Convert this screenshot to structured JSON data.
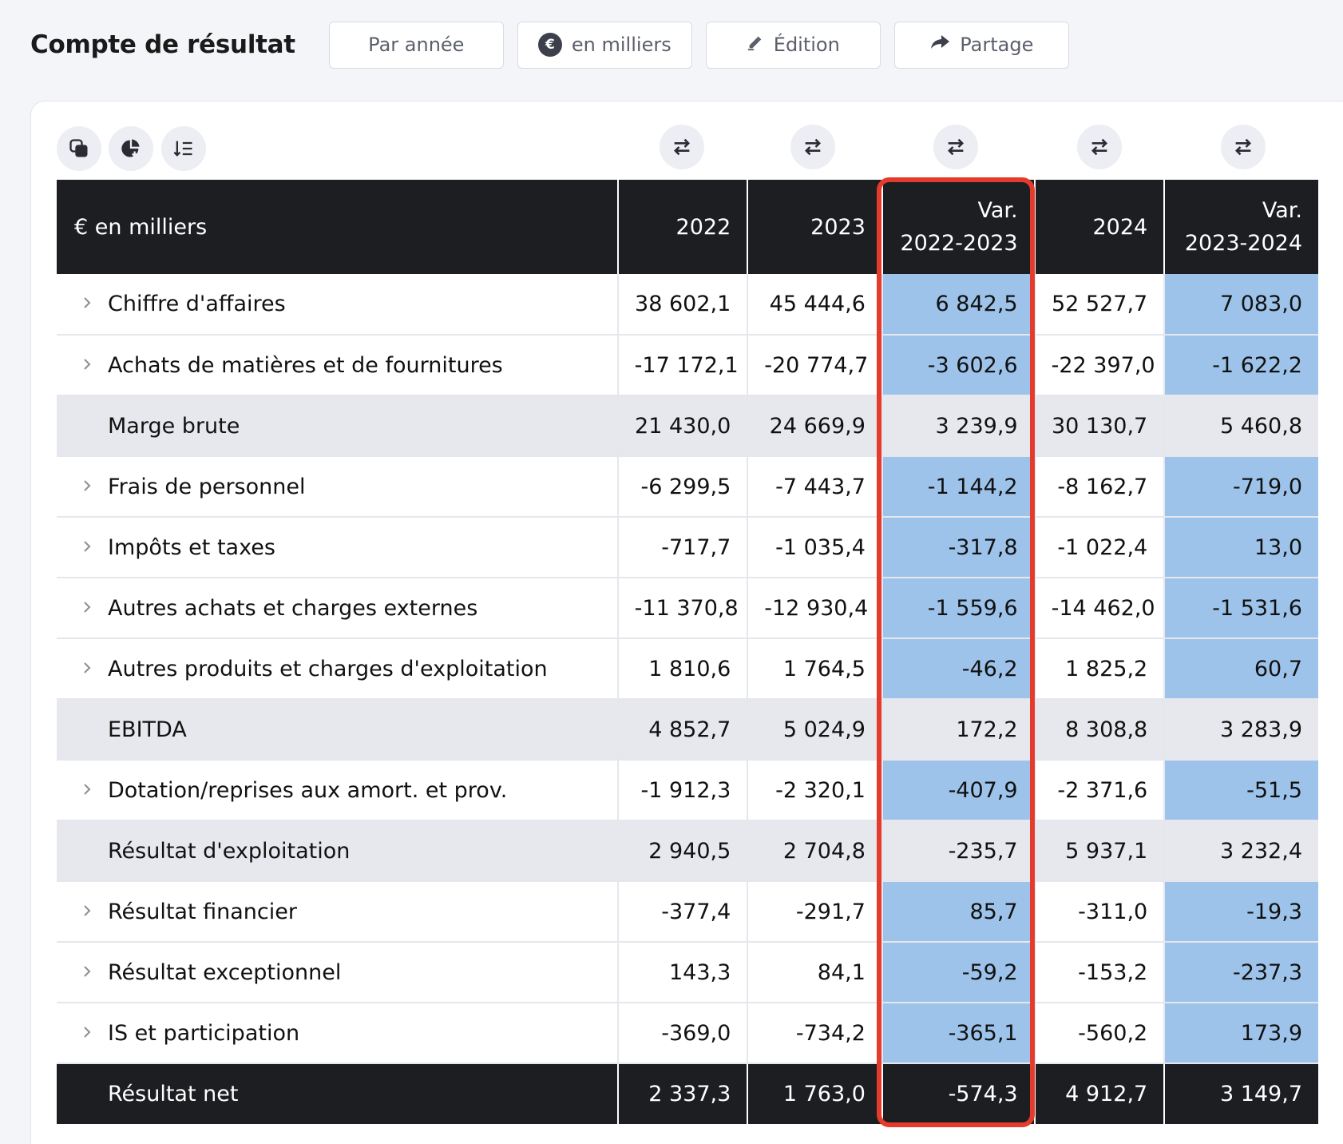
{
  "header": {
    "title": "Compte de résultat",
    "buttons": [
      {
        "label": "Par année",
        "icon": ""
      },
      {
        "label": "en milliers",
        "icon": "euro-badge-icon",
        "badge": "€"
      },
      {
        "label": "Édition",
        "icon": "pencil-icon"
      },
      {
        "label": "Partage",
        "icon": "share-arrow-icon"
      }
    ]
  },
  "toolbar": {
    "icons": [
      "copy-icon",
      "chart-download-icon",
      "sort-list-icon"
    ],
    "column_swap_icon": "swap-arrows-icon"
  },
  "table": {
    "columns": [
      "€ en milliers",
      "2022",
      "2023",
      "Var.\n2022-2023",
      "2024",
      "Var.\n2023-2024"
    ],
    "rows": [
      {
        "label": "Chiffre d'affaires",
        "type": "detail",
        "v2022": "38 602,1",
        "v2023": "45 444,6",
        "var1": "6 842,5",
        "v2024": "52 527,7",
        "var2": "7 083,0"
      },
      {
        "label": "Achats de matières et de fournitures",
        "type": "detail",
        "v2022": "-17 172,1",
        "v2023": "-20 774,7",
        "var1": "-3 602,6",
        "v2024": "-22 397,0",
        "var2": "-1 622,2"
      },
      {
        "label": "Marge brute",
        "type": "subtotal",
        "v2022": "21 430,0",
        "v2023": "24 669,9",
        "var1": "3 239,9",
        "v2024": "30 130,7",
        "var2": "5 460,8"
      },
      {
        "label": "Frais de personnel",
        "type": "detail",
        "v2022": "-6 299,5",
        "v2023": "-7 443,7",
        "var1": "-1 144,2",
        "v2024": "-8 162,7",
        "var2": "-719,0"
      },
      {
        "label": "Impôts et taxes",
        "type": "detail",
        "v2022": "-717,7",
        "v2023": "-1 035,4",
        "var1": "-317,8",
        "v2024": "-1 022,4",
        "var2": "13,0"
      },
      {
        "label": "Autres achats et charges externes",
        "type": "detail",
        "v2022": "-11 370,8",
        "v2023": "-12 930,4",
        "var1": "-1 559,6",
        "v2024": "-14 462,0",
        "var2": "-1 531,6"
      },
      {
        "label": "Autres produits et charges d'exploitation",
        "type": "detail",
        "v2022": "1 810,6",
        "v2023": "1 764,5",
        "var1": "-46,2",
        "v2024": "1 825,2",
        "var2": "60,7"
      },
      {
        "label": "EBITDA",
        "type": "subtotal",
        "v2022": "4 852,7",
        "v2023": "5 024,9",
        "var1": "172,2",
        "v2024": "8 308,8",
        "var2": "3 283,9"
      },
      {
        "label": "Dotation/reprises aux amort. et prov.",
        "type": "detail",
        "v2022": "-1 912,3",
        "v2023": "-2 320,1",
        "var1": "-407,9",
        "v2024": "-2 371,6",
        "var2": "-51,5"
      },
      {
        "label": "Résultat d'exploitation",
        "type": "subtotal",
        "v2022": "2 940,5",
        "v2023": "2 704,8",
        "var1": "-235,7",
        "v2024": "5 937,1",
        "var2": "3 232,4"
      },
      {
        "label": "Résultat financier",
        "type": "detail",
        "v2022": "-377,4",
        "v2023": "-291,7",
        "var1": "85,7",
        "v2024": "-311,0",
        "var2": "-19,3"
      },
      {
        "label": "Résultat exceptionnel",
        "type": "detail",
        "v2022": "143,3",
        "v2023": "84,1",
        "var1": "-59,2",
        "v2024": "-153,2",
        "var2": "-237,3"
      },
      {
        "label": "IS et participation",
        "type": "detail",
        "v2022": "-369,0",
        "v2023": "-734,2",
        "var1": "-365,1",
        "v2024": "-560,2",
        "var2": "173,9"
      },
      {
        "label": "Résultat net",
        "type": "total",
        "v2022": "2 337,3",
        "v2023": "1 763,0",
        "var1": "-574,3",
        "v2024": "4 912,7",
        "var2": "3 149,7"
      }
    ]
  },
  "colors": {
    "header_bg": "#1d1e22",
    "variation_bg": "#9dc3ea",
    "subtotal_bg": "#e6e8ee",
    "highlight_border": "#e53b2c"
  }
}
